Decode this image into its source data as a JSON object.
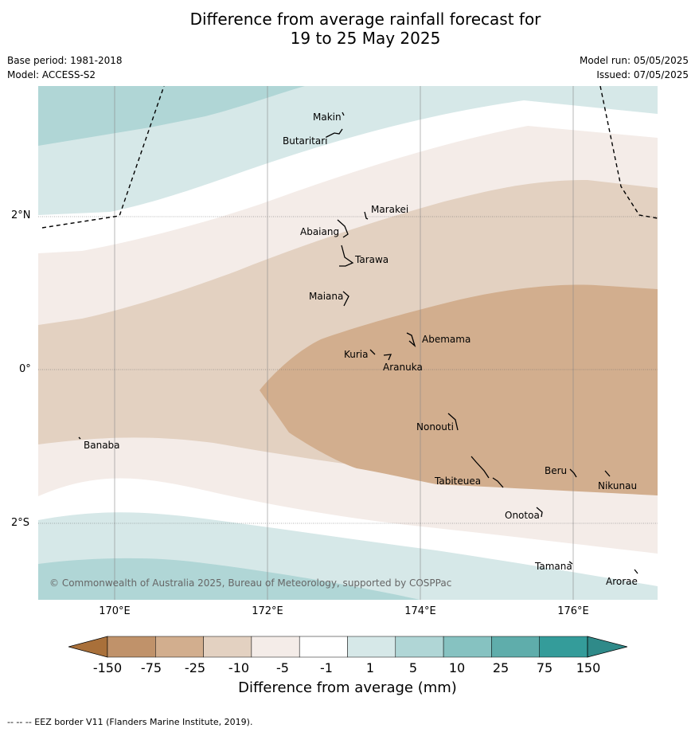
{
  "title_line1": "Difference from average rainfall forecast for",
  "title_line2": "19 to 25 May 2025",
  "base_period": "Base period: 1981-2018",
  "model": "Model: ACCESS-S2",
  "model_run": "Model run: 05/05/2025",
  "issued": "Issued: 07/05/2025",
  "lat_labels": [
    "2°N",
    "0°",
    "2°S"
  ],
  "lon_labels": [
    "170°E",
    "172°E",
    "174°E",
    "176°E"
  ],
  "islands": {
    "makin": "Makin",
    "butaritari": "Butaritari",
    "marakei": "Marakei",
    "abaiang": "Abaiang",
    "tarawa": "Tarawa",
    "maiana": "Maiana",
    "abemama": "Abemama",
    "kuria": "Kuria",
    "aranuka": "Aranuka",
    "banaba": "Banaba",
    "nonouti": "Nonouti",
    "beru": "Beru",
    "tabiteuea": "Tabiteuea",
    "nikunau": "Nikunau",
    "onotoa": "Onotoa",
    "tamana": "Tamana",
    "arorae": "Arorae"
  },
  "copyright": "© Commonwealth of Australia 2025, Bureau of Meteorology, supported by COSPPac",
  "colorbar": {
    "title": "Difference from average (mm)",
    "ticks": [
      "-150",
      "-75",
      "-25",
      "-10",
      "-5",
      "-1",
      "1",
      "5",
      "10",
      "25",
      "75",
      "150"
    ],
    "colors": [
      "#a9703a",
      "#c0926a",
      "#d2ae8e",
      "#e3d1c1",
      "#f4ece8",
      "#ffffff",
      "#d6e8e8",
      "#b0d6d6",
      "#86c2c1",
      "#5fadab",
      "#349c9a",
      "#2f8a89"
    ]
  },
  "footer": "--  --  -- EEZ border V11 (Flanders Marine Institute, 2019)."
}
